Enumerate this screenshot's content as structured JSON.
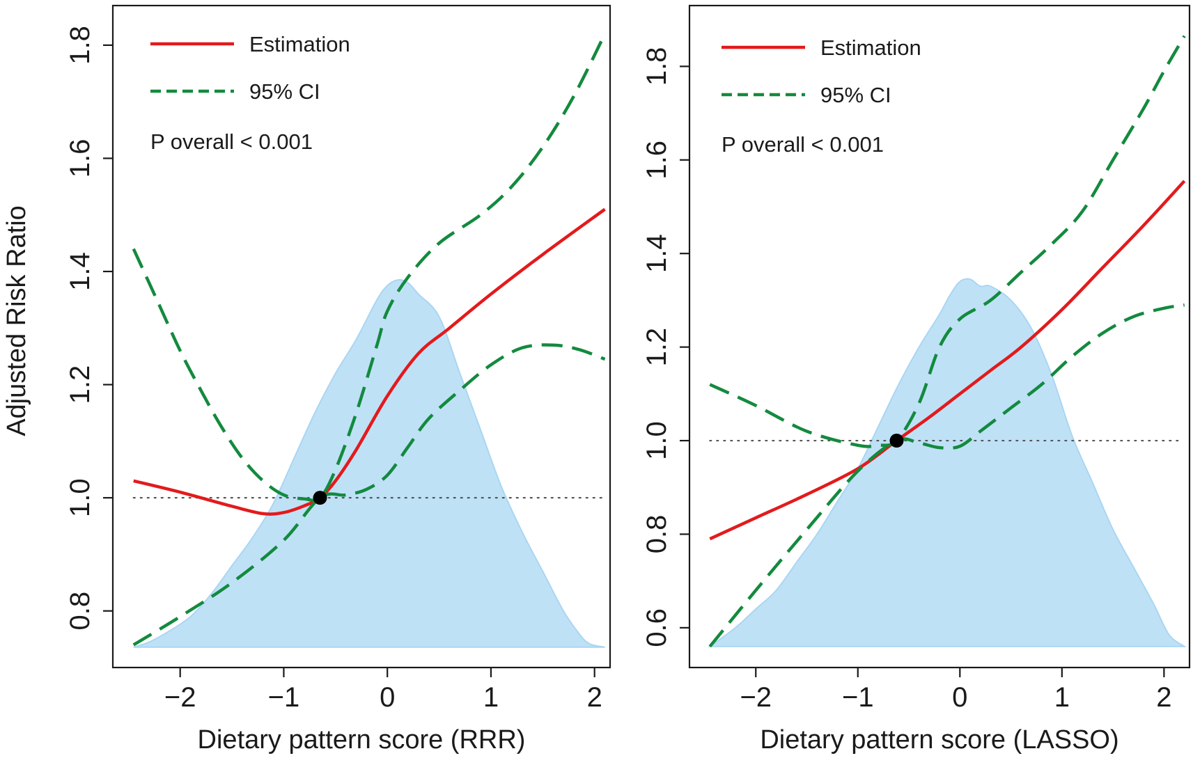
{
  "figure": {
    "ylabel": "Adjusted Risk Ratio",
    "legend_estimation": "Estimation",
    "legend_ci": "95% CI",
    "colors": {
      "estimation": "#e31a1c",
      "ci": "#138a3e",
      "density": "#bfe1f6",
      "density_edge": "#a9d6f2",
      "reference": "#555555",
      "axis": "#1a1a1a",
      "point": "#000000"
    }
  },
  "chart_data": [
    {
      "type": "line",
      "title": "",
      "xlabel": "Dietary pattern score (RRR)",
      "ylabel": "Adjusted Risk Ratio",
      "xlim": [
        -2.65,
        2.15
      ],
      "ylim": [
        0.7,
        1.87
      ],
      "xticks": [
        -2,
        -1,
        0,
        1,
        2
      ],
      "xtick_labels": [
        "−2",
        "−1",
        "0",
        "1",
        "2"
      ],
      "yticks": [
        0.8,
        1.0,
        1.2,
        1.4,
        1.6,
        1.8
      ],
      "ytick_labels": [
        "0.8",
        "1.0",
        "1.2",
        "1.4",
        "1.6",
        "1.8"
      ],
      "reference_y": 1.0,
      "reference_x_range": [
        -2.45,
        2.1
      ],
      "annotation": "P overall < 0.001",
      "legend_position": "top-left",
      "reference_point": {
        "x": -0.65,
        "y": 1.0
      },
      "series": [
        {
          "name": "Estimation",
          "style": "solid",
          "x": [
            -2.45,
            -2.0,
            -1.5,
            -1.2,
            -1.0,
            -0.8,
            -0.65,
            -0.5,
            -0.3,
            0.0,
            0.3,
            0.6,
            1.0,
            1.5,
            2.1
          ],
          "y": [
            1.03,
            1.01,
            0.985,
            0.972,
            0.974,
            0.986,
            1.0,
            1.03,
            1.085,
            1.18,
            1.255,
            1.3,
            1.36,
            1.43,
            1.51
          ]
        },
        {
          "name": "95% CI upper",
          "style": "dashed",
          "x": [
            -2.45,
            -2.2,
            -2.0,
            -1.8,
            -1.6,
            -1.4,
            -1.2,
            -1.0,
            -0.8,
            -0.65,
            -0.5,
            -0.3,
            -0.1,
            0.0,
            0.2,
            0.5,
            0.9,
            1.2,
            1.5,
            1.8,
            2.1
          ],
          "y": [
            1.44,
            1.34,
            1.26,
            1.19,
            1.125,
            1.07,
            1.03,
            1.005,
            0.998,
            1.0,
            1.05,
            1.15,
            1.27,
            1.33,
            1.39,
            1.45,
            1.5,
            1.55,
            1.62,
            1.71,
            1.82
          ]
        },
        {
          "name": "95% CI lower",
          "style": "dashed",
          "x": [
            -2.45,
            -2.0,
            -1.5,
            -1.0,
            -0.65,
            -0.4,
            -0.2,
            0.0,
            0.2,
            0.4,
            0.7,
            1.0,
            1.3,
            1.6,
            1.85,
            2.1
          ],
          "y": [
            0.74,
            0.79,
            0.85,
            0.925,
            1.0,
            1.005,
            1.015,
            1.04,
            1.09,
            1.14,
            1.19,
            1.235,
            1.265,
            1.27,
            1.262,
            1.245
          ]
        }
      ],
      "density": {
        "x": [
          -2.45,
          -2.3,
          -2.1,
          -1.9,
          -1.7,
          -1.5,
          -1.3,
          -1.1,
          -0.9,
          -0.7,
          -0.5,
          -0.3,
          -0.1,
          0.0,
          0.1,
          0.2,
          0.3,
          0.5,
          0.7,
          0.9,
          1.1,
          1.3,
          1.5,
          1.7,
          1.85,
          1.95,
          2.1
        ],
        "y": [
          0.736,
          0.745,
          0.765,
          0.79,
          0.83,
          0.88,
          0.93,
          0.99,
          1.07,
          1.15,
          1.22,
          1.28,
          1.35,
          1.375,
          1.385,
          1.38,
          1.36,
          1.32,
          1.22,
          1.12,
          1.02,
          0.94,
          0.87,
          0.8,
          0.76,
          0.742,
          0.736
        ]
      }
    },
    {
      "type": "line",
      "title": "",
      "xlabel": "Dietary pattern score (LASSO)",
      "ylabel": "",
      "xlim": [
        -2.65,
        2.25
      ],
      "ylim": [
        0.515,
        1.93
      ],
      "xticks": [
        -2,
        -1,
        0,
        1,
        2
      ],
      "xtick_labels": [
        "−2",
        "−1",
        "0",
        "1",
        "2"
      ],
      "yticks": [
        0.6,
        0.8,
        1.0,
        1.2,
        1.4,
        1.6,
        1.8
      ],
      "ytick_labels": [
        "0.6",
        "0.8",
        "1.0",
        "1.2",
        "1.4",
        "1.6",
        "1.8"
      ],
      "reference_y": 1.0,
      "reference_x_range": [
        -2.45,
        2.15
      ],
      "annotation": "P overall < 0.001",
      "legend_position": "top-left",
      "reference_point": {
        "x": -0.62,
        "y": 1.0
      },
      "series": [
        {
          "name": "Estimation",
          "style": "solid",
          "x": [
            -2.45,
            -2.0,
            -1.5,
            -1.0,
            -0.62,
            -0.3,
            0.0,
            0.3,
            0.6,
            1.0,
            1.4,
            1.8,
            2.2
          ],
          "y": [
            0.79,
            0.835,
            0.885,
            0.94,
            1.0,
            1.05,
            1.1,
            1.15,
            1.2,
            1.28,
            1.37,
            1.46,
            1.555
          ]
        },
        {
          "name": "95% CI upper",
          "style": "dashed",
          "x": [
            -2.45,
            -2.0,
            -1.5,
            -1.0,
            -0.8,
            -0.62,
            -0.4,
            -0.2,
            0.0,
            0.3,
            0.6,
            0.9,
            1.2,
            1.5,
            1.8,
            2.0,
            2.2
          ],
          "y": [
            1.12,
            1.075,
            1.02,
            0.99,
            0.99,
            1.0,
            1.08,
            1.2,
            1.26,
            1.3,
            1.36,
            1.42,
            1.49,
            1.6,
            1.71,
            1.79,
            1.865
          ]
        },
        {
          "name": "95% CI lower",
          "style": "dashed",
          "x": [
            -2.45,
            -2.0,
            -1.5,
            -1.0,
            -0.62,
            -0.4,
            -0.2,
            0.0,
            0.2,
            0.5,
            0.8,
            1.1,
            1.4,
            1.7,
            2.0,
            2.2
          ],
          "y": [
            0.56,
            0.68,
            0.81,
            0.935,
            1.0,
            0.995,
            0.985,
            0.988,
            1.02,
            1.07,
            1.12,
            1.18,
            1.23,
            1.265,
            1.283,
            1.29
          ]
        }
      ],
      "density": {
        "x": [
          -2.45,
          -2.2,
          -2.0,
          -1.8,
          -1.6,
          -1.4,
          -1.2,
          -1.0,
          -0.8,
          -0.6,
          -0.4,
          -0.2,
          -0.1,
          0.0,
          0.1,
          0.2,
          0.3,
          0.5,
          0.7,
          0.9,
          1.1,
          1.3,
          1.5,
          1.7,
          1.9,
          2.05,
          2.2
        ],
        "y": [
          0.56,
          0.6,
          0.64,
          0.68,
          0.74,
          0.8,
          0.87,
          0.94,
          1.03,
          1.12,
          1.2,
          1.27,
          1.31,
          1.34,
          1.345,
          1.33,
          1.33,
          1.3,
          1.24,
          1.14,
          1.01,
          0.91,
          0.81,
          0.73,
          0.65,
          0.585,
          0.56
        ]
      }
    }
  ]
}
